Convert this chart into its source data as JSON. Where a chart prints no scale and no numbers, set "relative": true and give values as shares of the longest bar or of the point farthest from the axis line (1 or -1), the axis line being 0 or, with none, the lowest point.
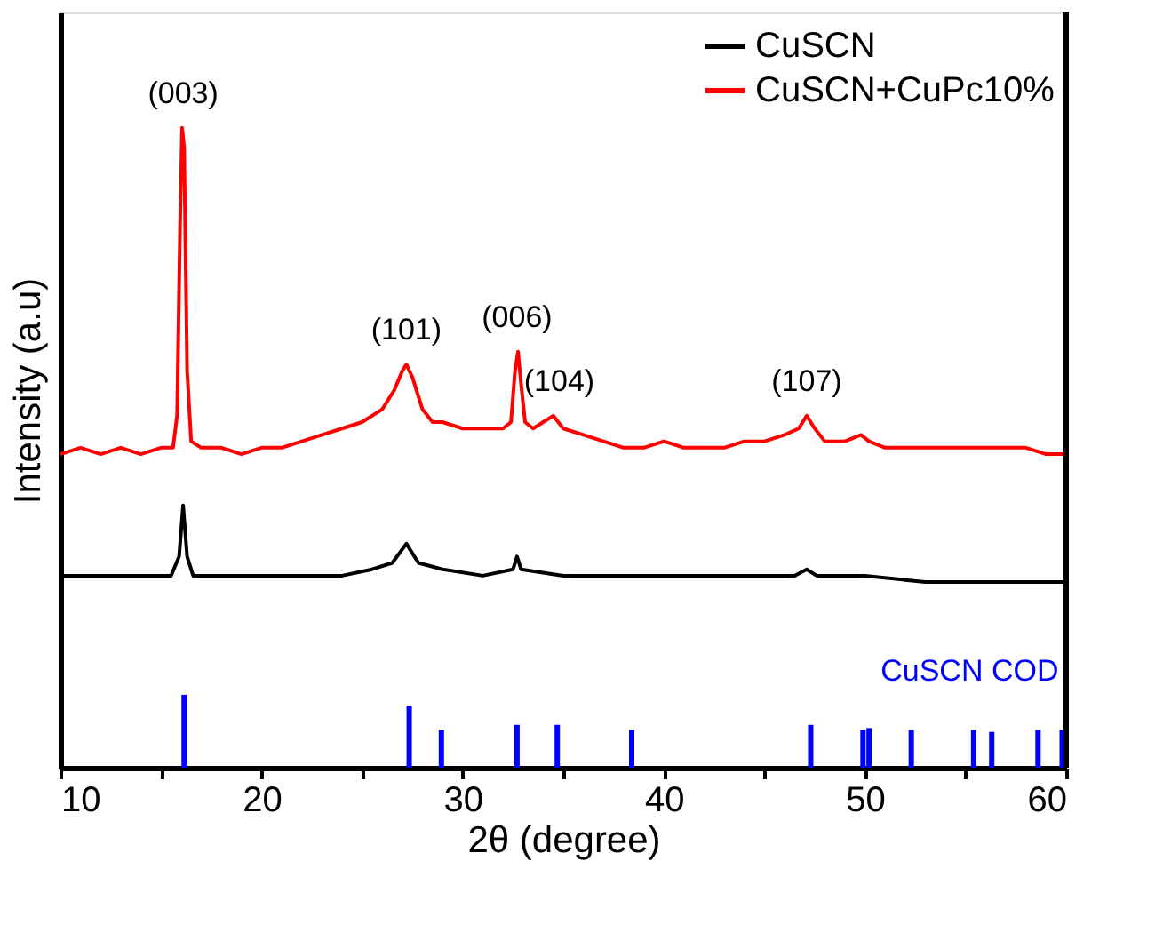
{
  "chart_data": {
    "type": "line",
    "relative": true,
    "xlabel": "2θ (degree)",
    "ylabel": "Intensity (a.u)",
    "xlim": [
      10,
      60
    ],
    "xticks": [
      10,
      {
        "value": 15,
        "label": null
      },
      20,
      {
        "value": 25,
        "label": null
      },
      30,
      {
        "value": 35,
        "label": null
      },
      40,
      {
        "value": 45,
        "label": null
      },
      50,
      {
        "value": 55,
        "label": null
      },
      60
    ],
    "legend": "top right",
    "grid": false,
    "line_style": "solid",
    "marker": "none",
    "series": [
      {
        "name": "CuSCN",
        "color": "#000000",
        "x": [
          10,
          12,
          14,
          15.5,
          15.9,
          16.1,
          16.3,
          16.6,
          18,
          20,
          22,
          24,
          25.5,
          26.5,
          27.2,
          27.8,
          29,
          31,
          32.5,
          32.7,
          32.9,
          35,
          38,
          41,
          44,
          46.5,
          47.1,
          47.6,
          50,
          53,
          56,
          60
        ],
        "values": [
          0.3,
          0.3,
          0.3,
          0.3,
          0.33,
          0.41,
          0.33,
          0.3,
          0.3,
          0.3,
          0.3,
          0.3,
          0.31,
          0.32,
          0.35,
          0.32,
          0.31,
          0.3,
          0.31,
          0.33,
          0.31,
          0.3,
          0.3,
          0.3,
          0.3,
          0.3,
          0.31,
          0.3,
          0.3,
          0.29,
          0.29,
          0.29
        ]
      },
      {
        "name": "CuSCN+CuPc10%",
        "color": "#ff0000",
        "x": [
          10,
          11,
          12,
          13,
          14,
          15,
          15.6,
          15.8,
          15.95,
          16.05,
          16.15,
          16.3,
          16.5,
          17,
          18,
          19,
          20,
          21,
          22,
          23,
          24,
          25,
          26,
          26.6,
          27.0,
          27.2,
          27.5,
          28,
          28.5,
          29,
          30,
          31,
          32,
          32.4,
          32.6,
          32.75,
          32.9,
          33.1,
          33.5,
          34,
          34.5,
          35,
          36,
          37,
          38,
          39,
          40,
          41,
          42,
          43,
          44,
          45,
          46,
          46.7,
          47.1,
          47.5,
          48,
          49,
          49.8,
          50.2,
          51,
          52,
          53,
          54,
          55,
          56,
          57,
          58,
          59,
          60
        ],
        "values": [
          0.49,
          0.5,
          0.49,
          0.5,
          0.49,
          0.5,
          0.5,
          0.55,
          0.85,
          1.0,
          0.97,
          0.62,
          0.51,
          0.5,
          0.5,
          0.49,
          0.5,
          0.5,
          0.51,
          0.52,
          0.53,
          0.54,
          0.56,
          0.59,
          0.62,
          0.63,
          0.61,
          0.56,
          0.54,
          0.54,
          0.53,
          0.53,
          0.53,
          0.54,
          0.62,
          0.65,
          0.6,
          0.54,
          0.53,
          0.54,
          0.55,
          0.53,
          0.52,
          0.51,
          0.5,
          0.5,
          0.51,
          0.5,
          0.5,
          0.5,
          0.51,
          0.51,
          0.52,
          0.53,
          0.55,
          0.53,
          0.51,
          0.51,
          0.52,
          0.51,
          0.5,
          0.5,
          0.5,
          0.5,
          0.5,
          0.5,
          0.5,
          0.5,
          0.49,
          0.49
        ]
      },
      {
        "name": "CuSCN COD",
        "type": "bar",
        "color": "#0000ff",
        "x": [
          16.15,
          27.34,
          28.94,
          32.7,
          34.7,
          38.4,
          47.3,
          49.9,
          50.2,
          52.3,
          55.4,
          56.3,
          58.6,
          59.8
        ],
        "values": [
          0.114,
          0.097,
          0.059,
          0.067,
          0.067,
          0.059,
          0.067,
          0.059,
          0.062,
          0.059,
          0.059,
          0.056,
          0.059,
          0.059
        ]
      }
    ],
    "annotations": [
      {
        "text": "(003)",
        "x": 16.1,
        "y": 1.0
      },
      {
        "text": "(101)",
        "x": 27.2,
        "y": 0.63
      },
      {
        "text": "(006)",
        "x": 32.7,
        "y": 0.65
      },
      {
        "text": "(104)",
        "x": 34.8,
        "y": 0.55
      },
      {
        "text": "(107)",
        "x": 47.1,
        "y": 0.55
      }
    ]
  }
}
